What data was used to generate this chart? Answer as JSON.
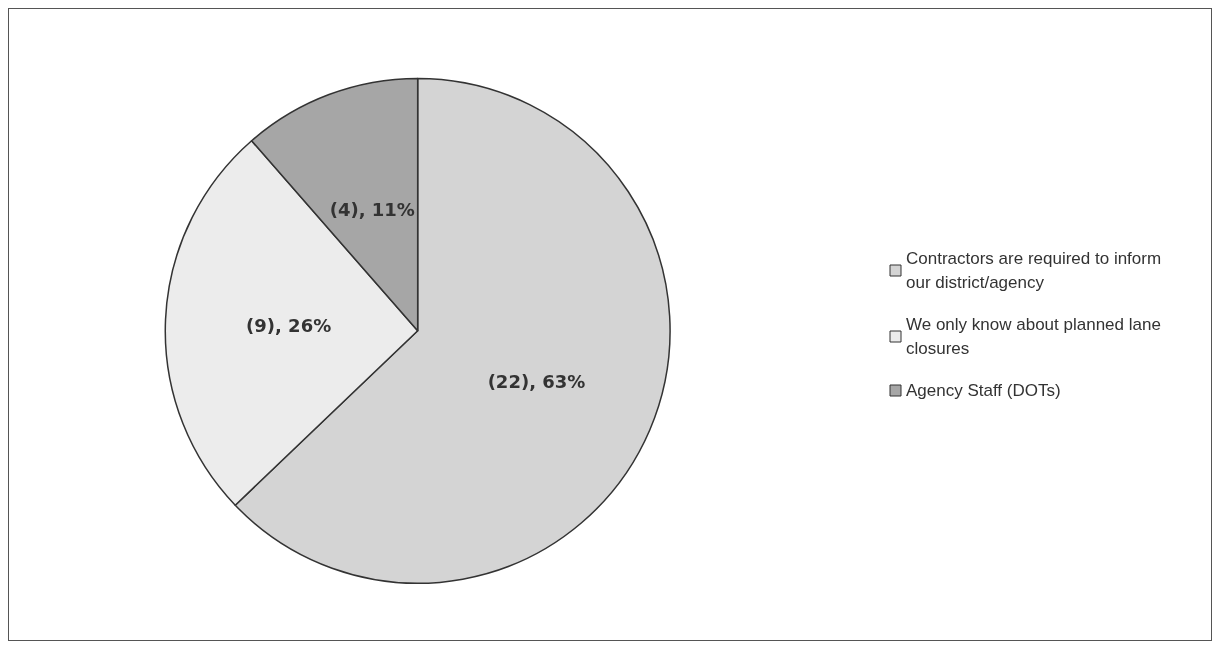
{
  "chart_data": {
    "type": "pie",
    "categories": [
      "Contractors are required to inform our district/agency",
      "We only know about planned lane closures",
      "Agency Staff (DOTs)"
    ],
    "values": [
      22,
      9,
      4
    ],
    "colors": [
      "#d4d4d4",
      "#ececec",
      "#a6a6a6"
    ],
    "value_labels": [
      "(22), 63%",
      "(9), 26%",
      "(4), 11%"
    ],
    "legend": "right"
  }
}
